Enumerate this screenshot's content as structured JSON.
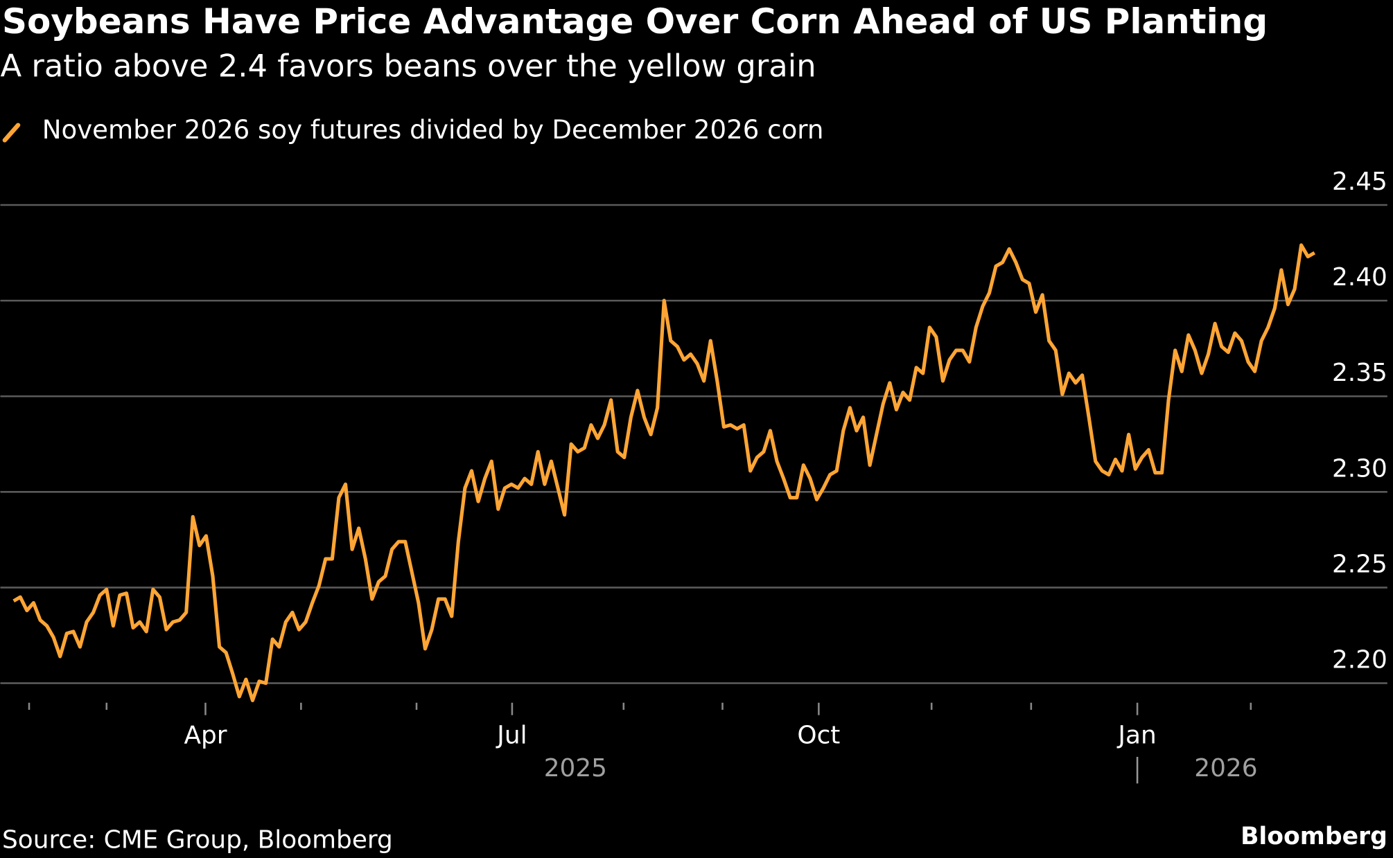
{
  "chart_data": {
    "type": "line",
    "title": "Soybeans Have Price Advantage Over Corn Ahead of US Planting",
    "subtitle": "A ratio above 2.4 favors beans over the yellow grain",
    "source": "Source: CME Group, Bloomberg",
    "brand": "Bloomberg",
    "series": [
      {
        "name": "November 2026 soy futures divided by December 2026 corn",
        "color": "#ffa535",
        "values": [
          2.243,
          2.245,
          2.238,
          2.242,
          2.233,
          2.23,
          2.224,
          2.214,
          2.226,
          2.227,
          2.219,
          2.232,
          2.237,
          2.246,
          2.249,
          2.23,
          2.246,
          2.247,
          2.229,
          2.232,
          2.227,
          2.249,
          2.245,
          2.228,
          2.232,
          2.233,
          2.237,
          2.287,
          2.272,
          2.277,
          2.256,
          2.219,
          2.216,
          2.205,
          2.193,
          2.202,
          2.191,
          2.201,
          2.2,
          2.223,
          2.219,
          2.232,
          2.237,
          2.228,
          2.232,
          2.242,
          2.251,
          2.265,
          2.265,
          2.297,
          2.304,
          2.27,
          2.281,
          2.265,
          2.244,
          2.253,
          2.256,
          2.27,
          2.274,
          2.274,
          2.258,
          2.242,
          2.218,
          2.228,
          2.244,
          2.244,
          2.235,
          2.274,
          2.302,
          2.311,
          2.295,
          2.307,
          2.316,
          2.291,
          2.302,
          2.304,
          2.302,
          2.307,
          2.304,
          2.321,
          2.304,
          2.316,
          2.302,
          2.288,
          2.325,
          2.321,
          2.323,
          2.335,
          2.328,
          2.335,
          2.348,
          2.321,
          2.318,
          2.339,
          2.353,
          2.339,
          2.33,
          2.344,
          2.4,
          2.379,
          2.376,
          2.369,
          2.372,
          2.367,
          2.358,
          2.379,
          2.358,
          2.334,
          2.335,
          2.333,
          2.335,
          2.311,
          2.318,
          2.321,
          2.332,
          2.316,
          2.307,
          2.297,
          2.297,
          2.314,
          2.307,
          2.296,
          2.302,
          2.309,
          2.311,
          2.332,
          2.344,
          2.332,
          2.339,
          2.314,
          2.33,
          2.346,
          2.357,
          2.343,
          2.352,
          2.348,
          2.365,
          2.362,
          2.386,
          2.381,
          2.358,
          2.369,
          2.374,
          2.374,
          2.368,
          2.386,
          2.397,
          2.404,
          2.418,
          2.42,
          2.427,
          2.42,
          2.411,
          2.409,
          2.394,
          2.403,
          2.379,
          2.374,
          2.351,
          2.362,
          2.357,
          2.361,
          2.339,
          2.316,
          2.311,
          2.309,
          2.317,
          2.311,
          2.33,
          2.312,
          2.318,
          2.322,
          2.31,
          2.31,
          2.348,
          2.374,
          2.363,
          2.382,
          2.374,
          2.362,
          2.372,
          2.388,
          2.376,
          2.373,
          2.383,
          2.379,
          2.368,
          2.363,
          2.379,
          2.386,
          2.396,
          2.416,
          2.398,
          2.406,
          2.429,
          2.423,
          2.425
        ]
      }
    ],
    "xlim": [
      0,
      196
    ],
    "xticks": [
      2.33,
      14,
      {
        "value": 28.9,
        "label": "Apr"
      },
      43.3,
      60.7,
      {
        "value": 75.1,
        "label": "Jul"
      },
      91.9,
      106.8,
      {
        "value": 121.3,
        "label": "Oct"
      },
      138.3,
      153.3,
      {
        "value": 169.3,
        "label": "Jan"
      },
      186.4
    ],
    "years": [
      {
        "value": 0,
        "label": "2025"
      },
      {
        "value": 169.3,
        "label": "2026"
      }
    ],
    "ylim": [
      2.2,
      2.45
    ],
    "yticks": [
      {
        "value": 2.2,
        "label": "2.20"
      },
      2.25,
      {
        "value": 2.3,
        "label": "2.30"
      },
      2.35,
      {
        "value": 2.4,
        "label": "2.40"
      },
      2.45
    ],
    "grid": true
  }
}
